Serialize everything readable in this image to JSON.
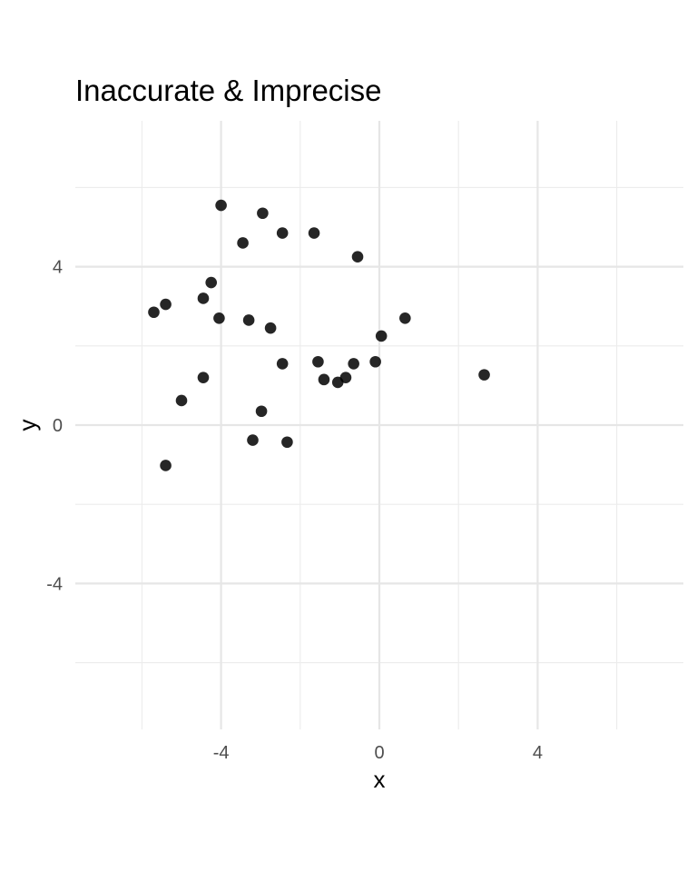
{
  "chart_data": {
    "type": "scatter",
    "title": "Inaccurate & Imprecise",
    "xlabel": "x",
    "ylabel": "y",
    "xlim": [
      -6.2,
      7.7
    ],
    "ylim": [
      -7.65,
      7.65
    ],
    "x_ticks": [
      -4,
      0,
      4
    ],
    "y_ticks": [
      -4,
      0,
      4
    ],
    "x_tick_labels": [
      "-4",
      "0",
      "4"
    ],
    "y_tick_labels": [
      "-4",
      "0",
      "4"
    ],
    "x_minor": [
      -6,
      -2,
      2,
      6
    ],
    "y_minor": [
      -6,
      -2,
      2,
      6
    ],
    "grid": true,
    "point_color": "#000000",
    "points": [
      {
        "x": -4.0,
        "y": 5.55
      },
      {
        "x": -2.95,
        "y": 5.35
      },
      {
        "x": -2.45,
        "y": 4.85
      },
      {
        "x": -1.65,
        "y": 4.85
      },
      {
        "x": -3.45,
        "y": 4.6
      },
      {
        "x": -0.55,
        "y": 4.25
      },
      {
        "x": -4.25,
        "y": 3.6
      },
      {
        "x": -4.45,
        "y": 3.2
      },
      {
        "x": -5.4,
        "y": 3.05
      },
      {
        "x": -5.7,
        "y": 2.85
      },
      {
        "x": -4.05,
        "y": 2.7
      },
      {
        "x": -3.3,
        "y": 2.65
      },
      {
        "x": 0.65,
        "y": 2.7
      },
      {
        "x": -2.75,
        "y": 2.45
      },
      {
        "x": 0.05,
        "y": 2.25
      },
      {
        "x": -2.45,
        "y": 1.55
      },
      {
        "x": -1.55,
        "y": 1.6
      },
      {
        "x": -0.65,
        "y": 1.55
      },
      {
        "x": -0.1,
        "y": 1.6
      },
      {
        "x": -4.45,
        "y": 1.2
      },
      {
        "x": -1.4,
        "y": 1.15
      },
      {
        "x": -0.85,
        "y": 1.2
      },
      {
        "x": -1.05,
        "y": 1.08
      },
      {
        "x": 2.65,
        "y": 1.27
      },
      {
        "x": -5.0,
        "y": 0.62
      },
      {
        "x": -2.98,
        "y": 0.35
      },
      {
        "x": -3.2,
        "y": -0.38
      },
      {
        "x": -2.33,
        "y": -0.43
      },
      {
        "x": -5.4,
        "y": -1.02
      }
    ]
  }
}
